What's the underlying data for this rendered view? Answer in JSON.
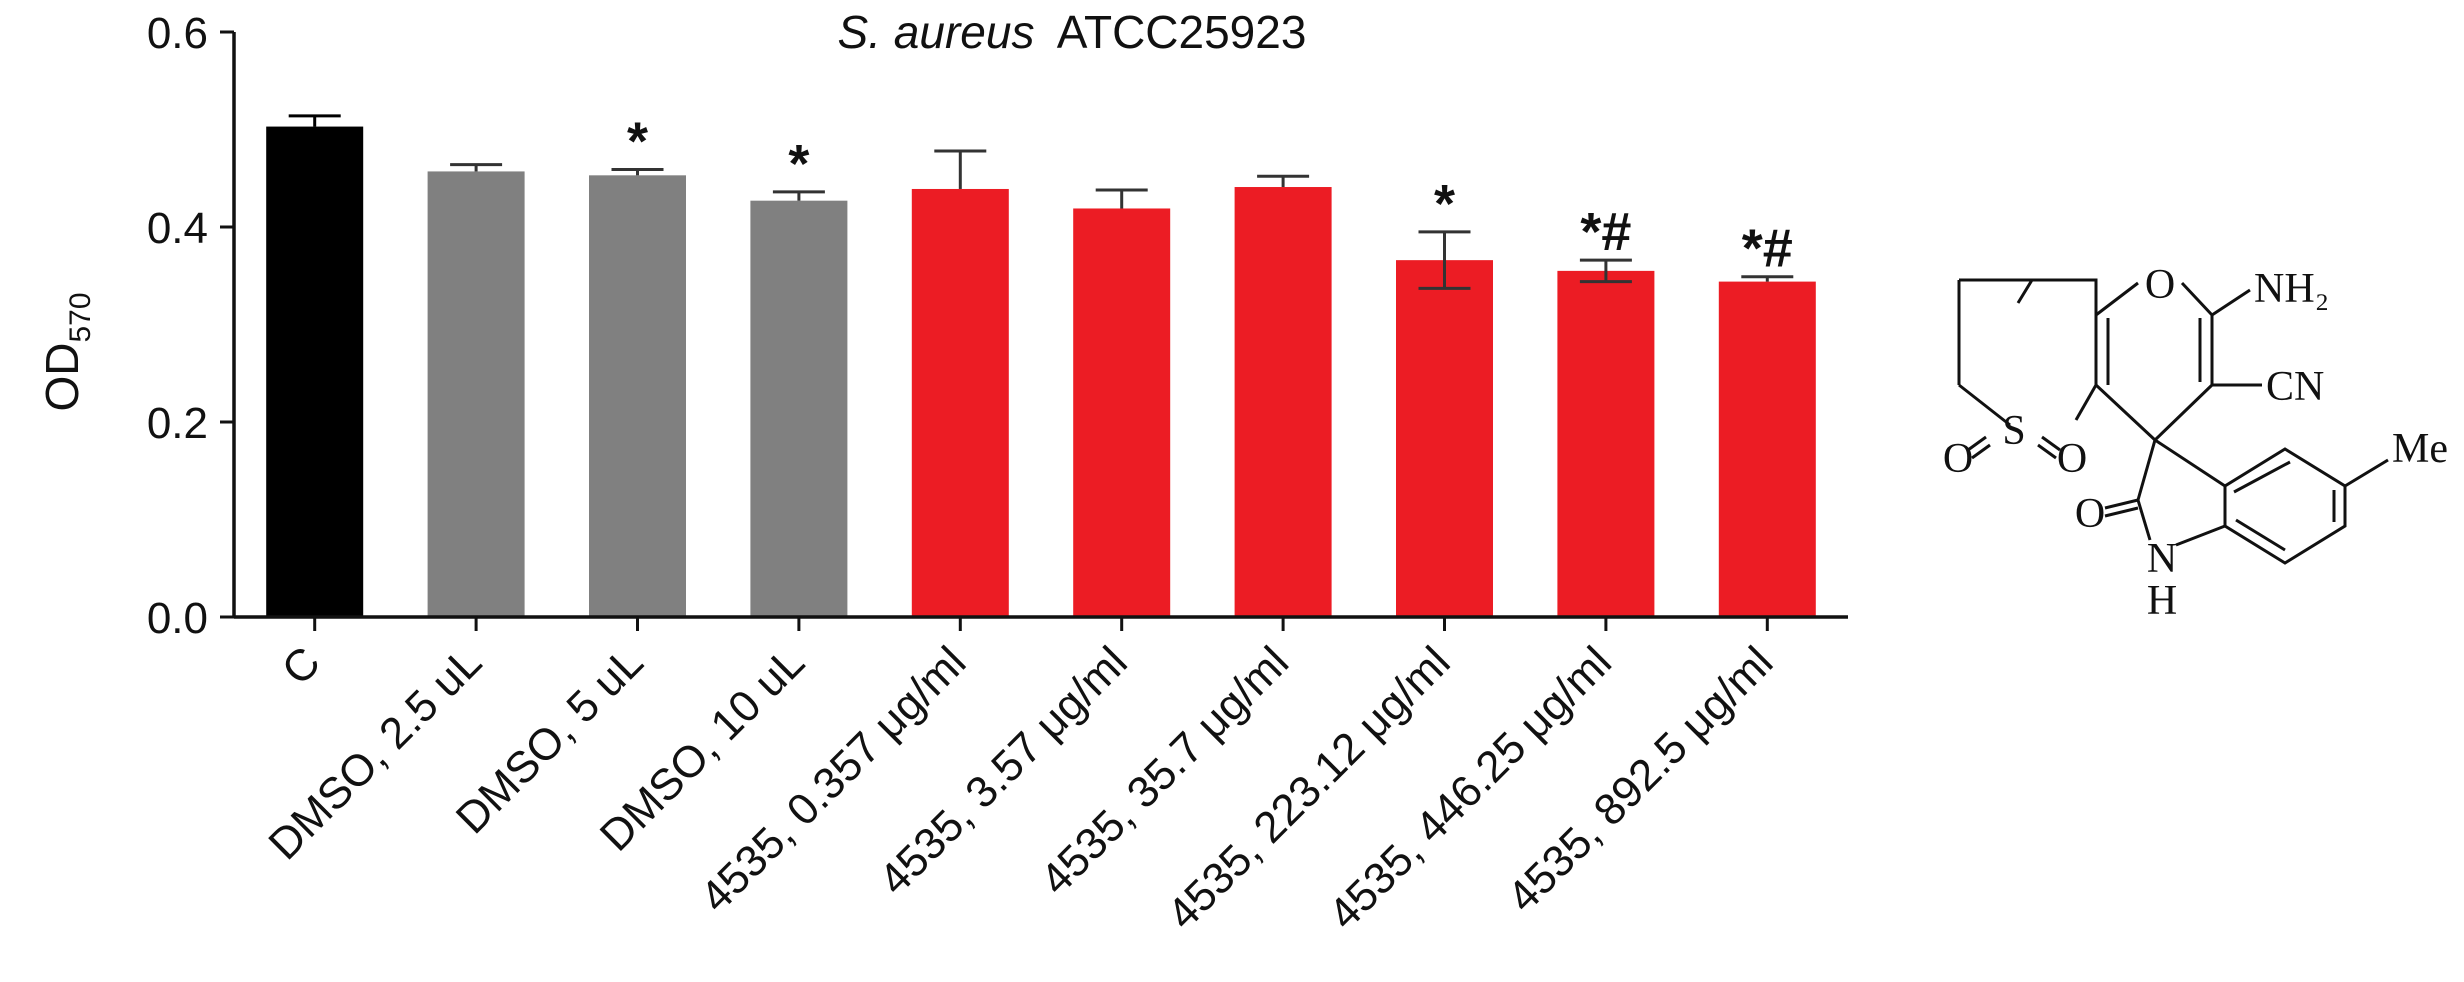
{
  "chart_data": {
    "type": "bar",
    "title_italic": "S. aureus",
    "title_rest": "ATCC25923",
    "ylabel": "OD",
    "ylabel_sub": "570",
    "xlabel": "",
    "ylim": [
      0,
      0.6
    ],
    "yticks": [
      "0.0",
      "0.2",
      "0.4",
      "0.6"
    ],
    "categories": [
      "C",
      "DMSO, 2.5 uL",
      "DMSO, 5 uL",
      "DMSO, 10 uL",
      "4535, 0.357 μg/ml",
      "4535, 3.57 μg/ml",
      "4535, 35.7 μg/ml",
      "4535, 223.12 μg/ml",
      "4535, 446.25 μg/ml",
      "4535, 892.5 μg/ml"
    ],
    "values": [
      0.503,
      0.457,
      0.453,
      0.427,
      0.439,
      0.419,
      0.441,
      0.366,
      0.355,
      0.344
    ],
    "errors": [
      0.011,
      0.007,
      0.006,
      0.009,
      0.039,
      0.019,
      0.011,
      0.029,
      0.011,
      0.005
    ],
    "error_style": [
      "up",
      "up",
      "up",
      "up",
      "up",
      "up",
      "up",
      "both",
      "both",
      "up"
    ],
    "colors": [
      "#000000",
      "#808080",
      "#808080",
      "#808080",
      "#ec1c24",
      "#ec1c24",
      "#ec1c24",
      "#ec1c24",
      "#ec1c24",
      "#ec1c24"
    ],
    "annotations": [
      "",
      "",
      "*",
      "*",
      "",
      "",
      "",
      "*",
      "*#",
      "*#"
    ]
  },
  "structure": {
    "labels": [
      "O",
      "NH₂",
      "CN",
      "S",
      "O",
      "O",
      "Me",
      "O",
      "N",
      "H"
    ]
  }
}
